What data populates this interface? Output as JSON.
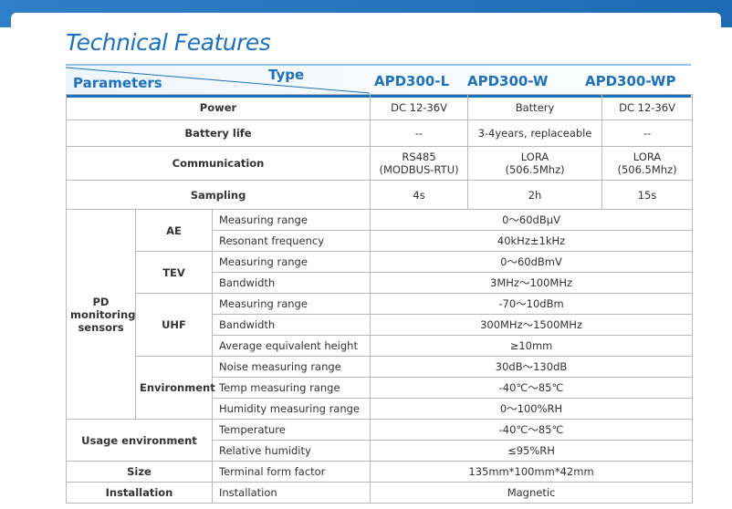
{
  "header": {
    "title": "Technical Features",
    "type_label": "Type",
    "parameters_label": "Parameters",
    "models": [
      "APD300-L",
      "APD300-W",
      "APD300-WP"
    ]
  },
  "general": [
    {
      "param": "Power",
      "values": [
        "DC 12-36V",
        "Battery",
        "DC 12-36V"
      ]
    },
    {
      "param": "Battery life",
      "values": [
        "--",
        "3-4years, replaceable",
        "--"
      ]
    },
    {
      "param": "Communication",
      "values": [
        "RS485\n(MODBUS-RTU)",
        "LORA\n(506.5Mhz)",
        "LORA\n(506.5Mhz)"
      ]
    },
    {
      "param": "Sampling",
      "values": [
        "4s",
        "2h",
        "15s"
      ]
    }
  ],
  "pd_monitoring": {
    "label": "PD monitoring sensors",
    "groups": [
      {
        "name": "AE",
        "items": [
          {
            "param": "Measuring range",
            "value": "0～60dBμV"
          },
          {
            "param": "Resonant frequency",
            "value": "40kHz±1kHz"
          }
        ]
      },
      {
        "name": "TEV",
        "items": [
          {
            "param": "Measuring range",
            "value": "0～60dBmV"
          },
          {
            "param": "Bandwidth",
            "value": "3MHz～100MHz"
          }
        ]
      },
      {
        "name": "UHF",
        "items": [
          {
            "param": "Measuring range",
            "value": "-70～10dBm"
          },
          {
            "param": "Bandwidth",
            "value": "300MHz～1500MHz"
          },
          {
            "param": "Average equivalent height",
            "value": "≥10mm"
          }
        ]
      },
      {
        "name": "Environment",
        "items": [
          {
            "param": "Noise measuring range",
            "value": "30dB～130dB"
          },
          {
            "param": "Temp measuring range",
            "value": "-40℃～85℃"
          },
          {
            "param": "Humidity measuring range",
            "value": "0～100%RH"
          }
        ]
      }
    ]
  },
  "usage_environment": {
    "label": "Usage environment",
    "items": [
      {
        "param": "Temperature",
        "value": "-40℃～85℃"
      },
      {
        "param": "Relative humidity",
        "value": "≤95%RH"
      }
    ]
  },
  "size": {
    "label": "Size",
    "param": "Terminal form factor",
    "value": "135mm*100mm*42mm"
  },
  "installation": {
    "label": "Installation",
    "param": "Installation",
    "value": "Magnetic"
  }
}
